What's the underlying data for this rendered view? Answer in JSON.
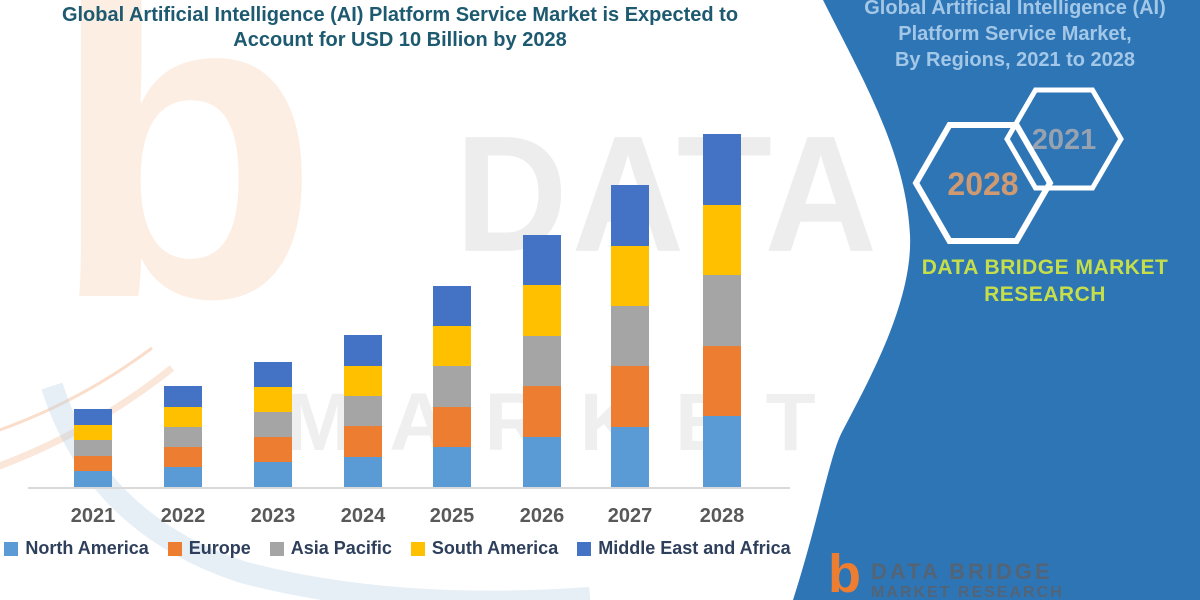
{
  "title": {
    "line1": "Global Artificial Intelligence (AI) Platform Service Market is Expected to",
    "line2": "Account for USD 10 Billion by 2028"
  },
  "panel": {
    "title_line1": "Global Artificial Intelligence (AI)",
    "title_line2": "Platform Service Market,",
    "title_line3": "By Regions, 2021 to 2028",
    "hexagon_back_label": "2021",
    "hexagon_front_label": "2028",
    "brand_line1": "DATA BRIDGE MARKET",
    "brand_line2": "RESEARCH",
    "colors": {
      "background": "#2E75B6",
      "title_text": "#a3c7e7",
      "brand_text": "#c6de4a",
      "hexagon_outline": "#ffffff",
      "hexagon_2021_text": "#97a2b0",
      "hexagon_2028_text": "#cf9a72"
    }
  },
  "watermark": {
    "b_glyph": "b",
    "big_text": "DATA BRIDGE",
    "sub_text": "MARKET & RESEARCH"
  },
  "logo": {
    "letter": "b",
    "line1": "DATA BRIDGE",
    "line2": "MARKET RESEARCH"
  },
  "chart_data": {
    "type": "bar",
    "stacked": true,
    "title": "Global Artificial Intelligence (AI) Platform Service Market is Expected to Account for USD 10 Billion by 2028",
    "unit": "USD Billion",
    "categories": [
      "2021",
      "2022",
      "2023",
      "2024",
      "2025",
      "2026",
      "2027",
      "2028"
    ],
    "totals": [
      2.2,
      2.85,
      3.55,
      4.3,
      5.7,
      7.15,
      8.55,
      10.0
    ],
    "series": [
      {
        "name": "North America",
        "color": "#5B9BD5",
        "values": [
          0.44,
          0.57,
          0.71,
          0.86,
          1.14,
          1.43,
          1.71,
          2.0
        ]
      },
      {
        "name": "Europe",
        "color": "#ED7D31",
        "values": [
          0.44,
          0.57,
          0.71,
          0.86,
          1.14,
          1.43,
          1.71,
          2.0
        ]
      },
      {
        "name": "Asia Pacific",
        "color": "#A5A5A5",
        "values": [
          0.44,
          0.57,
          0.71,
          0.86,
          1.14,
          1.43,
          1.71,
          2.0
        ]
      },
      {
        "name": "South America",
        "color": "#FFC000",
        "values": [
          0.44,
          0.57,
          0.71,
          0.86,
          1.14,
          1.43,
          1.71,
          2.0
        ]
      },
      {
        "name": "Middle East and Africa",
        "color": "#4472C4",
        "values": [
          0.44,
          0.57,
          0.71,
          0.86,
          1.14,
          1.43,
          1.71,
          2.0
        ]
      }
    ],
    "xlabel": "",
    "ylabel": "",
    "ylim": [
      0,
      10
    ],
    "grid": false,
    "y_axis_visible": false,
    "legend_position": "bottom"
  }
}
